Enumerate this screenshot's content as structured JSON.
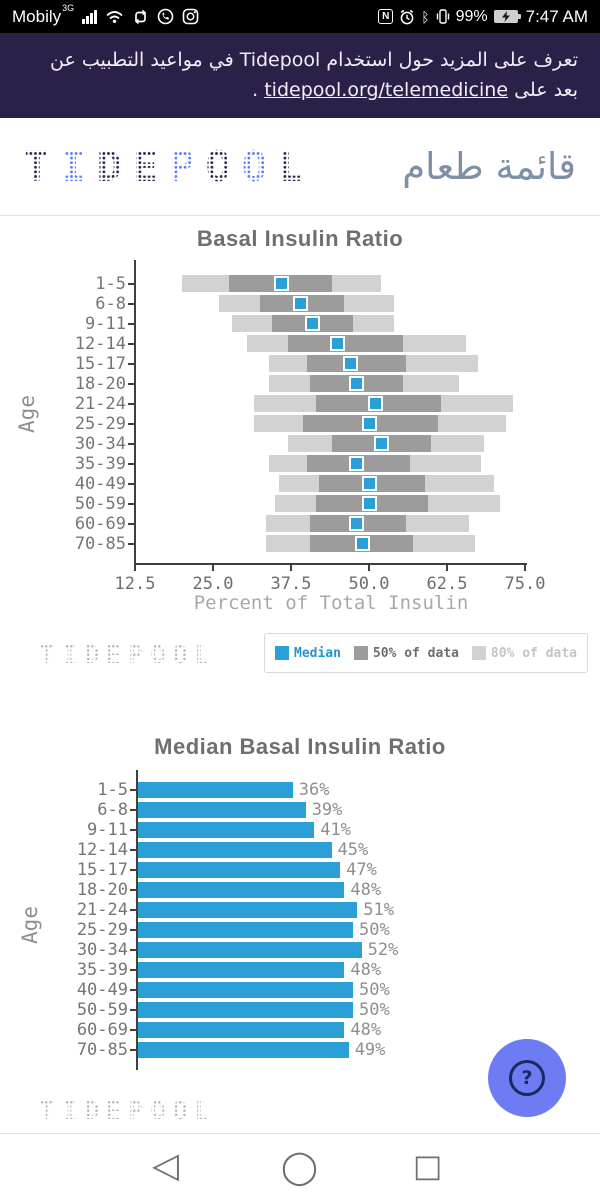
{
  "status_bar": {
    "carrier": "Mobily",
    "network_badge": "3G",
    "icons_left": [
      "signal-bars",
      "wifi",
      "sync",
      "whatsapp",
      "instagram"
    ],
    "icons_right": [
      "nfc",
      "alarm",
      "bluetooth",
      "vibrate",
      "battery-charging"
    ],
    "nfc_letter": "N",
    "bluetooth_glyph": "ᛒ",
    "battery_percent": "99%",
    "time": "7:47 AM"
  },
  "banner": {
    "text": "تعرف على المزيد حول استخدام Tidepool في مواعيد التطبيب عن بعد على",
    "link": "tidepool.org/telemedicine",
    "suffix": " .",
    "bg_color": "#2b2148"
  },
  "header": {
    "logo_text": "TIDEPOOL",
    "logo_letters": [
      {
        "ch": "T",
        "tone": "navy"
      },
      {
        "ch": "I",
        "tone": "blue"
      },
      {
        "ch": "D",
        "tone": "navy"
      },
      {
        "ch": "E",
        "tone": "navy"
      },
      {
        "ch": "P",
        "tone": "blue"
      },
      {
        "ch": "O",
        "tone": "navy"
      },
      {
        "ch": "O",
        "tone": "blue"
      },
      {
        "ch": "L",
        "tone": "navy"
      }
    ],
    "title_arabic": "قائمة طعام"
  },
  "colors": {
    "accent_blue": "#2aa0d6",
    "logo_navy": "#2b2851",
    "logo_blue": "#5f7cf5",
    "banner_bg": "#2b2148",
    "fab_bg": "#6d7cf2",
    "box_dark_gray": "#9c9c9c",
    "box_light_gray": "#d2d2d2"
  },
  "chart_data": [
    {
      "type": "boxplot-horizontal",
      "title": "Basal Insulin Ratio",
      "ylabel": "Age",
      "xlabel": "Percent of Total Insulin",
      "xlim": [
        12.5,
        75.0
      ],
      "x_tick_labels": [
        "12.5",
        "25.0",
        "37.5",
        "50.0",
        "62.5",
        "75.0"
      ],
      "x_tick_values": [
        12.5,
        25.0,
        37.5,
        50.0,
        62.5,
        75.0
      ],
      "categories": [
        "1-5",
        "6-8",
        "9-11",
        "12-14",
        "15-17",
        "18-20",
        "21-24",
        "25-29",
        "30-34",
        "35-39",
        "40-49",
        "50-59",
        "60-69",
        "70-85"
      ],
      "rows_p10_q1_median_q3_p90": [
        [
          20.0,
          27.5,
          36,
          44.0,
          52.0
        ],
        [
          26.0,
          32.5,
          39,
          46.0,
          54.0
        ],
        [
          28.0,
          34.5,
          41,
          47.5,
          54.0
        ],
        [
          30.5,
          37.0,
          45,
          55.5,
          65.5
        ],
        [
          34.0,
          40.0,
          47,
          56.0,
          67.5
        ],
        [
          34.0,
          40.5,
          48,
          55.5,
          64.5
        ],
        [
          31.5,
          41.5,
          51,
          61.5,
          73.0
        ],
        [
          31.5,
          39.5,
          50,
          61.0,
          72.0
        ],
        [
          37.0,
          44.0,
          52,
          60.0,
          68.5
        ],
        [
          34.0,
          40.0,
          48,
          56.5,
          68.0
        ],
        [
          35.5,
          42.0,
          50,
          59.0,
          70.0
        ],
        [
          35.0,
          41.5,
          50,
          59.5,
          71.0
        ],
        [
          33.5,
          40.5,
          48,
          56.0,
          66.0
        ],
        [
          33.5,
          40.5,
          49,
          57.0,
          67.0
        ]
      ],
      "legend_position": "bottom-right",
      "grid": false
    },
    {
      "type": "bar",
      "title": "Median Basal Insulin Ratio",
      "ylabel": "Age",
      "xlabel": "",
      "xlim": [
        0,
        100
      ],
      "categories": [
        "1-5",
        "6-8",
        "9-11",
        "12-14",
        "15-17",
        "18-20",
        "21-24",
        "25-29",
        "30-34",
        "35-39",
        "40-49",
        "50-59",
        "60-69",
        "70-85"
      ],
      "values": [
        36,
        39,
        41,
        45,
        47,
        48,
        51,
        50,
        52,
        48,
        50,
        50,
        48,
        49
      ],
      "labels": [
        "36%",
        "39%",
        "41%",
        "45%",
        "47%",
        "48%",
        "51%",
        "50%",
        "52%",
        "48%",
        "50%",
        "50%",
        "48%",
        "49%"
      ],
      "bar_color": "#2aa0d6",
      "grid": false
    }
  ],
  "legend": {
    "items": [
      {
        "label": "Median",
        "swatch": "#2aa0d6",
        "text_color": "#2196cc"
      },
      {
        "label": "50% of data",
        "swatch": "#9c9c9c",
        "text_color": "#6d6d6d"
      },
      {
        "label": "80% of data",
        "swatch": "#d2d2d2",
        "text_color": "#c4c4c4"
      }
    ]
  },
  "watermark": "TIDEPOOL",
  "fab": {
    "glyph": "?"
  },
  "nav_bar": {
    "icons": [
      "back",
      "home",
      "recents"
    ],
    "glyphs": [
      "◁",
      "◯",
      "□"
    ]
  }
}
